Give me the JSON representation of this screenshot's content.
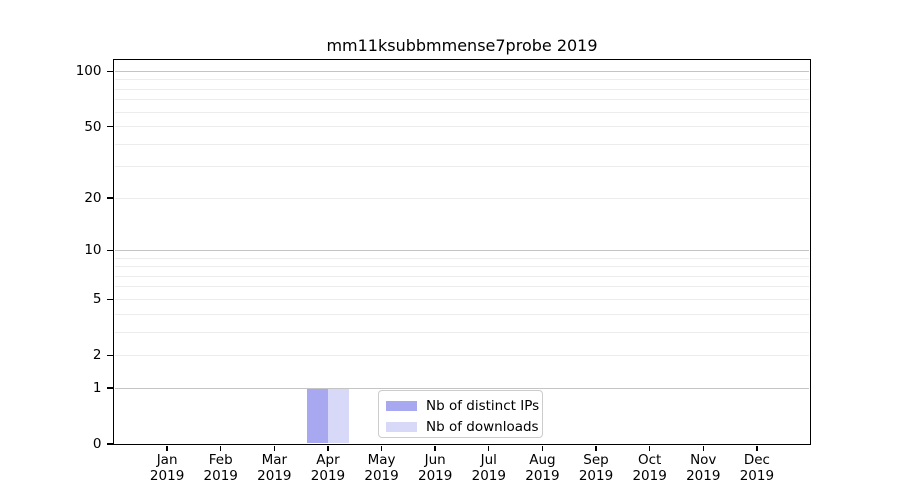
{
  "chart_data": {
    "type": "bar",
    "title": "mm11ksubbmmense7probe 2019",
    "x": [
      "Jan",
      "Feb",
      "Mar",
      "Apr",
      "May",
      "Jun",
      "Jul",
      "Aug",
      "Sep",
      "Oct",
      "Nov",
      "Dec"
    ],
    "x_year": "2019",
    "series": [
      {
        "name": "Nb of distinct IPs",
        "color": "#a8a8f0",
        "values": [
          0,
          0,
          0,
          1,
          0,
          0,
          0,
          0,
          0,
          0,
          0,
          0
        ]
      },
      {
        "name": "Nb of downloads",
        "color": "#d8d8f8",
        "values": [
          0,
          0,
          0,
          1,
          0,
          0,
          0,
          0,
          0,
          0,
          0,
          0
        ]
      }
    ],
    "yscale": "log10(value+1)",
    "ylim": [
      0,
      116
    ],
    "y_ticks": [
      0,
      1,
      2,
      5,
      10,
      20,
      50,
      100
    ],
    "y_minor_ticks": [
      3,
      4,
      6,
      7,
      8,
      9,
      30,
      40,
      60,
      70,
      80,
      90
    ],
    "y_decade_gridlines": [
      1,
      10,
      100
    ],
    "legend_position": "lower center",
    "grid": "both"
  },
  "colors": {
    "grid_decade": "#c4c4c4",
    "grid_minor": "#ececec",
    "axis": "#000000",
    "legend_border": "#cccccc",
    "text": "#000000"
  }
}
